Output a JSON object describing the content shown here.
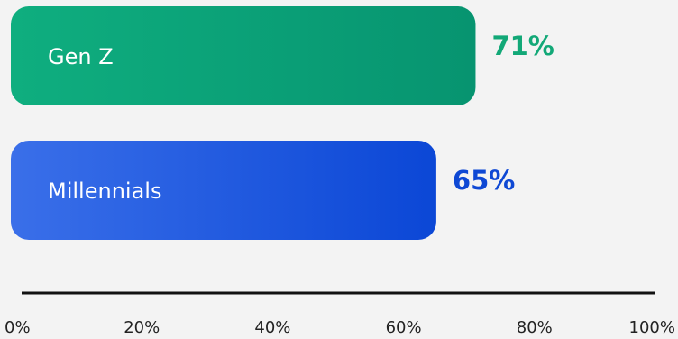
{
  "chart_data": {
    "type": "bar",
    "orientation": "horizontal",
    "categories": [
      "Gen Z",
      "Millennials"
    ],
    "values": [
      71,
      65
    ],
    "value_labels": [
      "71%",
      "65%"
    ],
    "colors": {
      "Gen Z": [
        "#0fae7f",
        "#079470"
      ],
      "Millennials": [
        "#3a6fe9",
        "#0b47d6"
      ]
    },
    "value_label_colors": {
      "Gen Z": "#12a877",
      "Millennials": "#0e48d4"
    },
    "xlim": [
      0,
      100
    ],
    "xticks": [
      0,
      20,
      40,
      60,
      80,
      100
    ],
    "xtick_labels": [
      "0%",
      "20%",
      "40%",
      "60%",
      "80%",
      "100%"
    ],
    "grid": false,
    "title": "",
    "xlabel": "",
    "ylabel": ""
  }
}
